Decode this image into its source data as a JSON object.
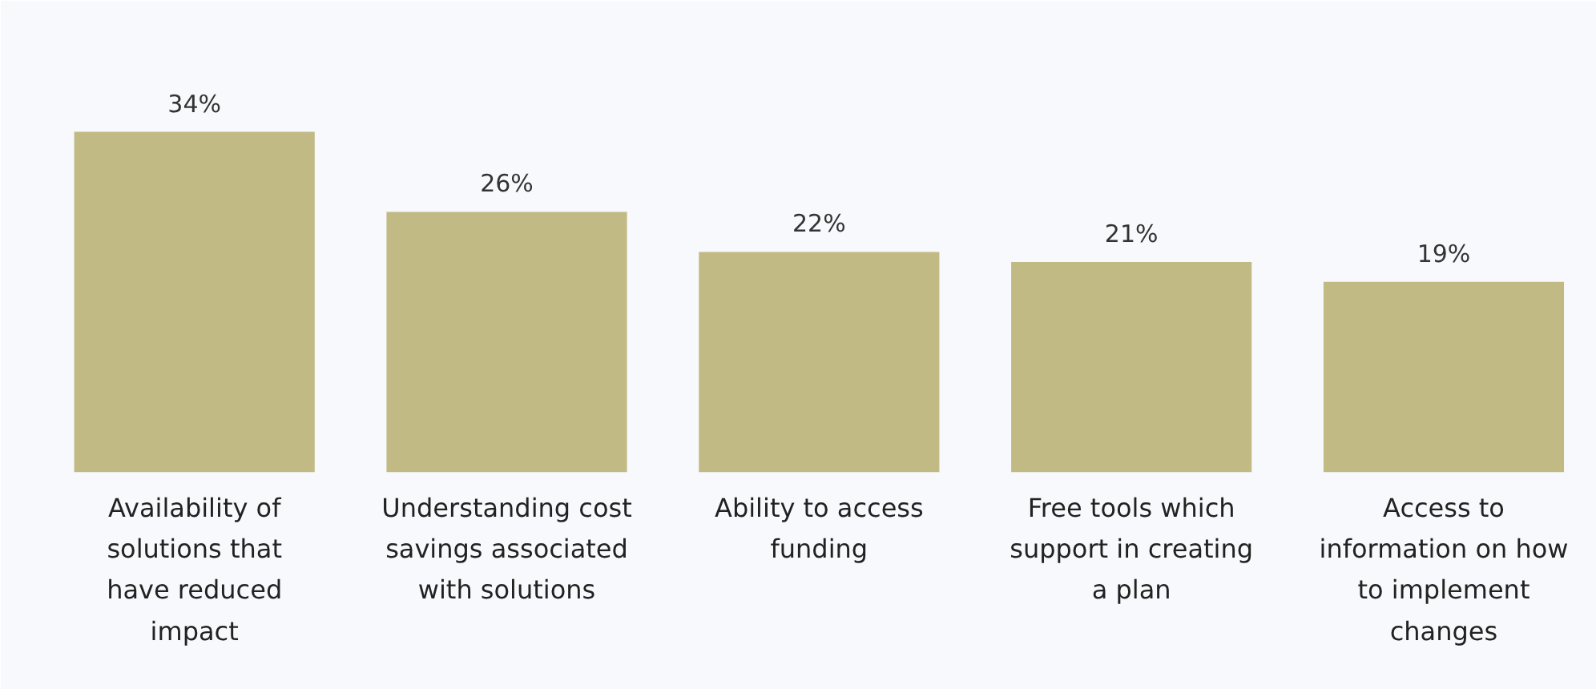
{
  "chart_data": {
    "type": "bar",
    "categories": [
      "Availability of solutions that have reduced impact",
      "Understanding cost savings associated with solutions",
      "Ability to access funding",
      "Free tools which support in creating a plan",
      "Access to information on how to implement changes"
    ],
    "values": [
      34,
      26,
      22,
      21,
      19
    ],
    "color": "#c2ba85",
    "data_labels": true,
    "value_labels": [
      "34%",
      "26%",
      "22%",
      "21%",
      "19%"
    ]
  }
}
